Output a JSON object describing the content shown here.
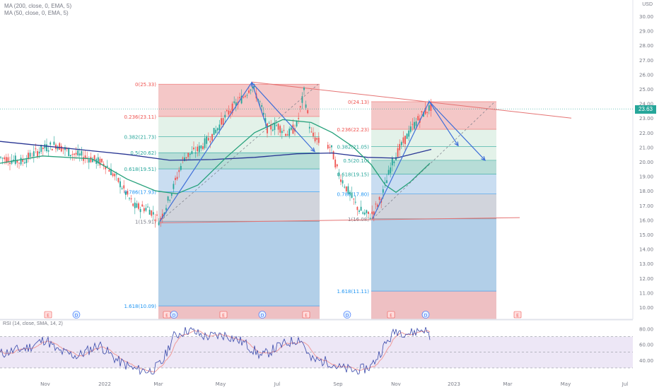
{
  "legend": [
    "MA (200, close, 0, EMA, 5)",
    "MA (50, close, 0, EMA, 5)"
  ],
  "currency_label": "USD",
  "last_price_label": "23.63",
  "rsi_legend": "RSI (14, close, SMA, 14, 2)",
  "colors": {
    "candle_up": "#26a69a",
    "candle_down": "#ef5350",
    "ma200": "#283593",
    "ma50": "#26a17b",
    "fib_red": "#f4c7c7",
    "fib_green": "#e3f2e9",
    "fib_teal": "#b7ddd7",
    "fib_blue": "#c9ddf1",
    "fib_gray": "#d1d4dc",
    "fib_deep_blue": "#b2cfe8",
    "fib_pink": "#eec0c3",
    "projection_arrow": "#3f6fd8",
    "trendline": "#e57373",
    "rsi_line": "#3949ab",
    "rsi_ma": "#ef9a9a",
    "rsi_band": "#ede7f6",
    "price_badge": "#26a69a"
  },
  "chart_data": {
    "type": "candlestick",
    "ylim": [
      9.9,
      30.9
    ],
    "y_ticks": [
      "30.00",
      "29.00",
      "28.00",
      "27.00",
      "26.00",
      "25.00",
      "24.00",
      "23.00",
      "22.00",
      "21.00",
      "20.00",
      "19.00",
      "18.00",
      "17.00",
      "16.00",
      "15.00",
      "14.00",
      "13.00",
      "12.00",
      "11.00",
      "10.00"
    ],
    "x_ticks": [
      "Nov",
      "2022",
      "Mar",
      "May",
      "Jul",
      "Sep",
      "Nov",
      "2023",
      "Mar",
      "May",
      "Jul"
    ],
    "last_price": 23.63,
    "fib_left": {
      "levels": [
        {
          "label": "0(25.33)",
          "value": 25.33
        },
        {
          "label": "0.236(23.11)",
          "value": 23.11
        },
        {
          "label": "0.382(21.73)",
          "value": 21.73
        },
        {
          "label": "0.5(20.62)",
          "value": 20.62
        },
        {
          "label": "0.618(19.51)",
          "value": 19.51
        },
        {
          "label": "0.786(17.93)",
          "value": 17.93
        },
        {
          "label": "1(15.91)",
          "value": 15.91
        },
        {
          "label": "1.618(10.09)",
          "value": 10.09
        }
      ]
    },
    "fib_right": {
      "levels": [
        {
          "label": "0(24.13)",
          "value": 24.13
        },
        {
          "label": "0.236(22.23)",
          "value": 22.23
        },
        {
          "label": "0.382(21.05)",
          "value": 21.05
        },
        {
          "label": "0.5(20.10)",
          "value": 20.1
        },
        {
          "label": "0.618(19.15)",
          "value": 19.15
        },
        {
          "label": "0.786(17.80)",
          "value": 17.8
        },
        {
          "label": "1(16.08)",
          "value": 16.08
        },
        {
          "label": "1.618(11.11)",
          "value": 11.11
        }
      ]
    },
    "events": [
      "E",
      "D",
      "E",
      "D",
      "E",
      "D",
      "E",
      "D",
      "E",
      "D",
      "E"
    ],
    "rsi": {
      "ticks": [
        "80.00",
        "60.00",
        "40.00"
      ],
      "ylim": [
        20,
        84
      ],
      "upper_band": 70,
      "mid_band": 50,
      "lower_band": 30
    }
  }
}
